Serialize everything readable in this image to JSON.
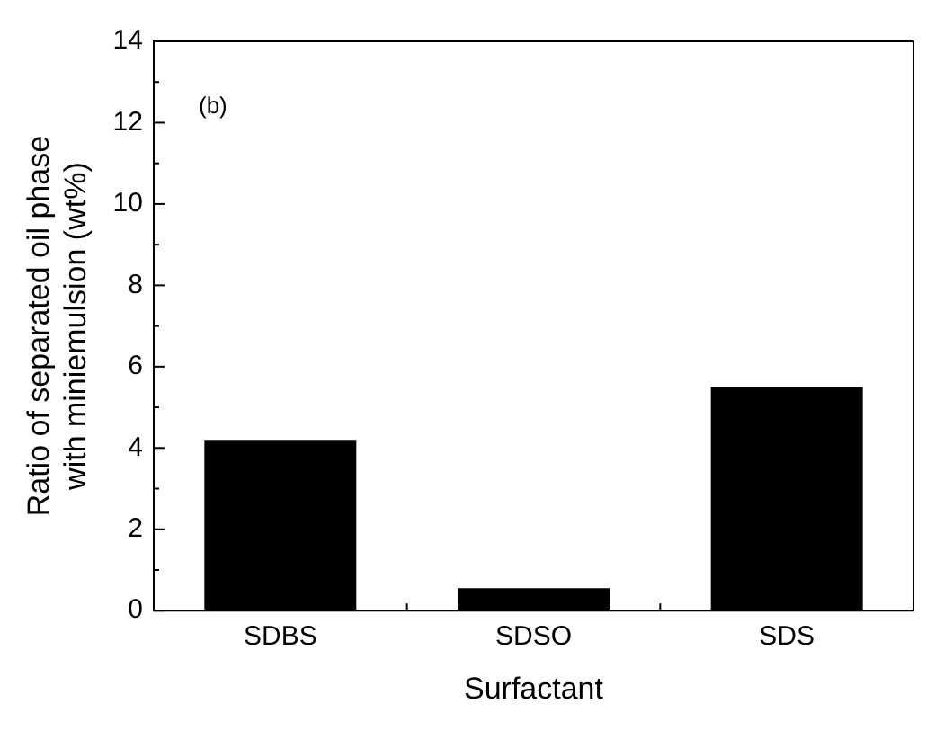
{
  "chart_data": {
    "type": "bar",
    "xlabel": "Surfactant",
    "ylabel": "Ratio of separated oil phase with miniemulsion (wt%)",
    "categories": [
      "SDBS",
      "SDSO",
      "SDS"
    ],
    "values": [
      4.2,
      0.55,
      5.5
    ],
    "color": "#000000",
    "ylim": [
      0,
      14
    ],
    "yticks": [
      0,
      2,
      4,
      6,
      8,
      10,
      12,
      14
    ],
    "grid": false,
    "legend": false,
    "annotations": [
      "(b)"
    ]
  }
}
